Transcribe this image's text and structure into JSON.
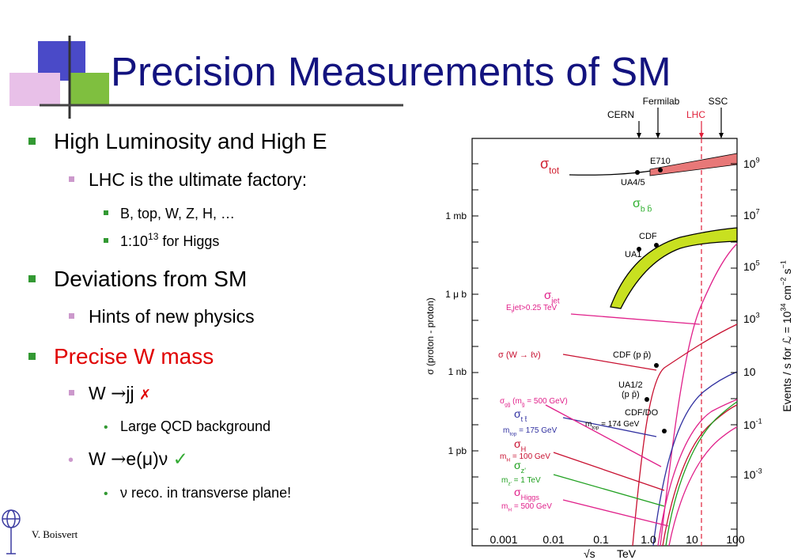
{
  "title": "Precision Measurements of SM",
  "bullets": {
    "b1": "High Luminosity and High E",
    "b1a": "LHC is the ultimate factory:",
    "b1a1": "B, top, W, Z, H, …",
    "b1a2": [
      "1:10",
      "13",
      " for Higgs"
    ],
    "b2": "Deviations from SM",
    "b2a": "Hints of new physics",
    "b3": "Precise W mass",
    "b3a": [
      "W ",
      "→",
      "jj ",
      "✗"
    ],
    "b3a1": "Large QCD background",
    "b3b": [
      "W ",
      "→",
      "e(μ)ν ",
      "✓"
    ],
    "b3b1": "ν reco. in transverse plane!"
  },
  "footer": "V. Boisvert",
  "figure": {
    "top_labels": [
      "CERN",
      "Fermilab",
      "LHC",
      "SSC"
    ],
    "y_left_label": "σ (proton - proton)",
    "y_left_ticks": [
      "1 mb",
      "1 μ b",
      "1 nb",
      "1 pb"
    ],
    "y_right_label": [
      {
        "t": "Events / s  for ℒ = 10"
      },
      {
        "sup": "34"
      },
      {
        "t": " cm"
      },
      {
        "sup": "−2"
      },
      {
        "t": " s"
      },
      {
        "sup": "−1"
      }
    ],
    "y_right_ticks": [
      [
        {
          "t": "10"
        },
        {
          "sup": "9"
        }
      ],
      [
        {
          "t": "10"
        },
        {
          "sup": "7"
        }
      ],
      [
        {
          "t": "10"
        },
        {
          "sup": "5"
        }
      ],
      [
        {
          "t": "10"
        },
        {
          "sup": "3"
        }
      ],
      [
        {
          "t": "10"
        }
      ],
      [
        {
          "t": "10"
        },
        {
          "sup": "-1"
        }
      ],
      [
        {
          "t": "10"
        },
        {
          "sup": "-3"
        }
      ]
    ],
    "x_ticks": [
      "0.001",
      "0.01",
      "0.1",
      "1.0",
      "10",
      "100"
    ],
    "x_label": [
      "√s",
      "TeV"
    ],
    "curve_labels": [
      [
        {
          "t": "σ"
        },
        {
          "sub": "tot"
        }
      ],
      [
        {
          "t": "E710"
        }
      ],
      [
        {
          "t": "UA4/5"
        }
      ],
      [
        {
          "t": "σ"
        },
        {
          "sub": "b b̄"
        }
      ],
      [
        {
          "t": "CDF"
        }
      ],
      [
        {
          "t": "UA1"
        }
      ],
      [
        {
          "t": "σ"
        },
        {
          "sub": "jet"
        }
      ],
      [
        {
          "t": "E"
        },
        {
          "sub": "t"
        },
        {
          "t": "jet"
        },
        {
          "t": ">0.25 TeV"
        }
      ],
      [
        {
          "t": "σ (W → ℓν)"
        }
      ],
      [
        {
          "t": "CDF (p p̄)"
        }
      ],
      [
        {
          "t": "UA1/2"
        }
      ],
      [
        {
          "t": "(p p̄)"
        }
      ],
      [
        {
          "t": "σ"
        },
        {
          "sub": "gg̃"
        },
        {
          "t": " (m"
        },
        {
          "sub": "g̃"
        },
        {
          "t": " = 500 GeV)"
        }
      ],
      [
        {
          "t": "σ"
        },
        {
          "sub": "t t̄"
        }
      ],
      [
        {
          "t": "m"
        },
        {
          "sub": "top"
        },
        {
          "t": " = 175 GeV"
        }
      ],
      [
        {
          "t": "CDF/DO"
        }
      ],
      [
        {
          "t": "m"
        },
        {
          "sub": "top"
        },
        {
          "t": " = 174 GeV"
        }
      ],
      [
        {
          "t": "σ"
        },
        {
          "sub": "H"
        }
      ],
      [
        {
          "t": "m"
        },
        {
          "sub": "H"
        },
        {
          "t": " = 100 GeV"
        }
      ],
      [
        {
          "t": "σ"
        },
        {
          "sub": "z'"
        }
      ],
      [
        {
          "t": "m"
        },
        {
          "sub": "z'"
        },
        {
          "t": " = 1 TeV"
        }
      ],
      [
        {
          "t": "σ"
        },
        {
          "sub": "Higgs"
        }
      ],
      [
        {
          "t": "m"
        },
        {
          "sub": "H"
        },
        {
          "t": " = 500 GeV"
        }
      ]
    ]
  }
}
